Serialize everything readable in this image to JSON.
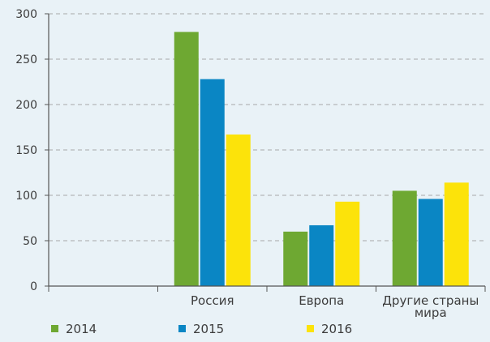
{
  "chart_data": {
    "type": "bar",
    "categories": [
      "",
      "Россия",
      "Европа",
      "Другие страны мира"
    ],
    "category_lines": [
      [
        ""
      ],
      [
        "Россия"
      ],
      [
        "Европа"
      ],
      [
        "Другие страны",
        "мира"
      ]
    ],
    "series": [
      {
        "name": "2014",
        "color": "#6ea832",
        "values": [
          null,
          280,
          60,
          105
        ]
      },
      {
        "name": "2015",
        "color": "#0a86c4",
        "values": [
          null,
          228,
          67,
          96
        ]
      },
      {
        "name": "2016",
        "color": "#fce30a",
        "values": [
          null,
          167,
          93,
          114
        ]
      }
    ],
    "yticks": [
      "0",
      "50",
      "100",
      "150",
      "200",
      "250",
      "300"
    ],
    "ylim": [
      0,
      300
    ],
    "grid": true,
    "legend_position": "bottom",
    "colors": {
      "background": "#e9f2f7",
      "axis": "#555555",
      "grid": "#a8a8a8",
      "text": "#3c3c3c"
    }
  }
}
